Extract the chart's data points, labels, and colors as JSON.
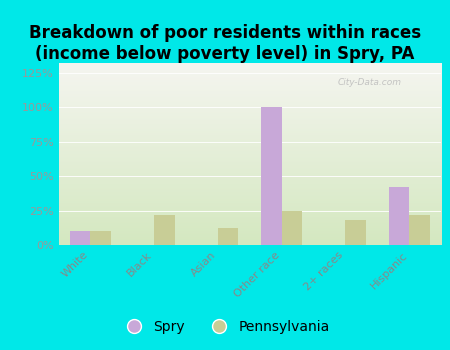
{
  "title": "Breakdown of poor residents within races\n(income below poverty level) in Spry, PA",
  "categories": [
    "White",
    "Black",
    "Asian",
    "Other race",
    "2+ races",
    "Hispanic"
  ],
  "spry_values": [
    10,
    0,
    0,
    100,
    0,
    42
  ],
  "pa_values": [
    10,
    22,
    12,
    25,
    18,
    22
  ],
  "spry_color": "#c8a8d8",
  "pa_color": "#c8cd96",
  "background_color": "#00e8e8",
  "plot_bg_top": "#f5f5f0",
  "plot_bg_bottom": "#d4e8c0",
  "yticks": [
    0,
    25,
    50,
    75,
    100,
    125
  ],
  "ylabels": [
    "0%",
    "25%",
    "50%",
    "75%",
    "100%",
    "125%"
  ],
  "ylim": [
    0,
    132
  ],
  "bar_width": 0.32,
  "title_fontsize": 12,
  "tick_fontsize": 8,
  "legend_fontsize": 10,
  "watermark": "City-Data.com",
  "ytick_color": "#999999",
  "xtick_color": "#888888",
  "grid_color": "#e8e8e0"
}
